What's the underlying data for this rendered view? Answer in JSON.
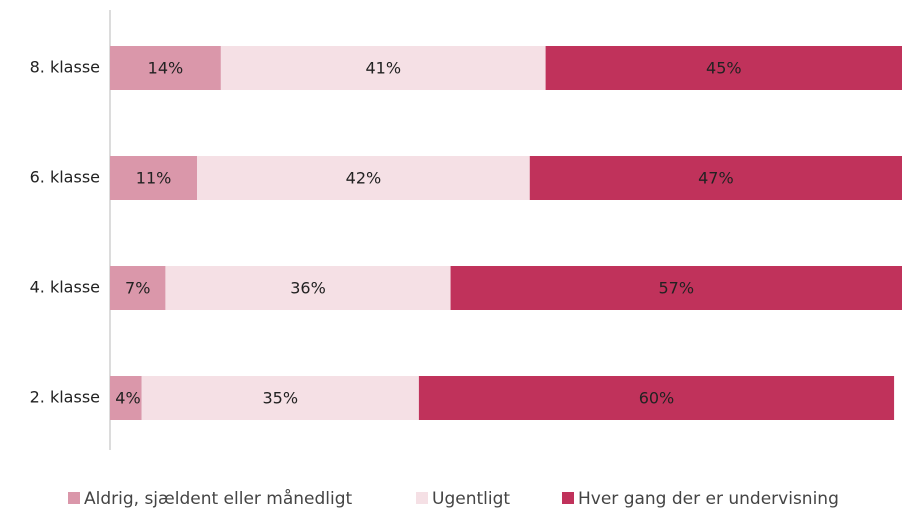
{
  "chart_data": {
    "type": "stacked-bar-horizontal",
    "categories": [
      "8. klasse",
      "6. klasse",
      "4. klasse",
      "2. klasse"
    ],
    "series": [
      {
        "name": "Aldrig, sjældent eller månedligt",
        "color": "#da97aa",
        "values": [
          14,
          11,
          7,
          4
        ],
        "value_labels": [
          "14%",
          "11%",
          "7%",
          "4%"
        ]
      },
      {
        "name": "Ugentligt",
        "color": "#f5e0e5",
        "values": [
          41,
          42,
          36,
          35
        ],
        "value_labels": [
          "41%",
          "42%",
          "36%",
          "35%"
        ]
      },
      {
        "name": "Hver gang der er undervisning",
        "color": "#c0325b",
        "values": [
          45,
          47,
          57,
          60
        ],
        "value_labels": [
          "45%",
          "47%",
          "57%",
          "60%"
        ]
      }
    ],
    "xlim": [
      0,
      100
    ],
    "legend": "bottom"
  }
}
